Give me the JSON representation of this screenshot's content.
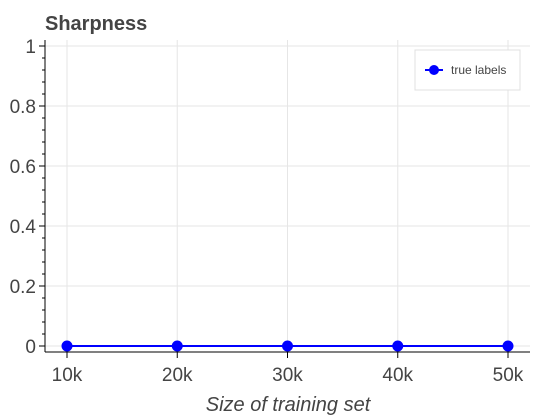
{
  "chart_data": {
    "type": "line",
    "title": "Sharpness",
    "xlabel": "Size of training set",
    "ylabel": "",
    "x": [
      10000,
      20000,
      30000,
      40000,
      50000
    ],
    "x_tick_labels": [
      "10k",
      "20k",
      "30k",
      "40k",
      "50k"
    ],
    "y_tick_values": [
      0,
      0.2,
      0.4,
      0.6,
      0.8,
      1
    ],
    "y_tick_labels": [
      "0",
      "0.2",
      "0.4",
      "0.6",
      "0.8",
      "1"
    ],
    "xlim": [
      10000,
      50000
    ],
    "ylim": [
      0,
      1
    ],
    "grid": true,
    "legend_position": "top-right",
    "series": [
      {
        "name": "true labels",
        "color": "#0000ff",
        "marker": "circle",
        "values": [
          0,
          0,
          0,
          0,
          0
        ]
      }
    ]
  }
}
